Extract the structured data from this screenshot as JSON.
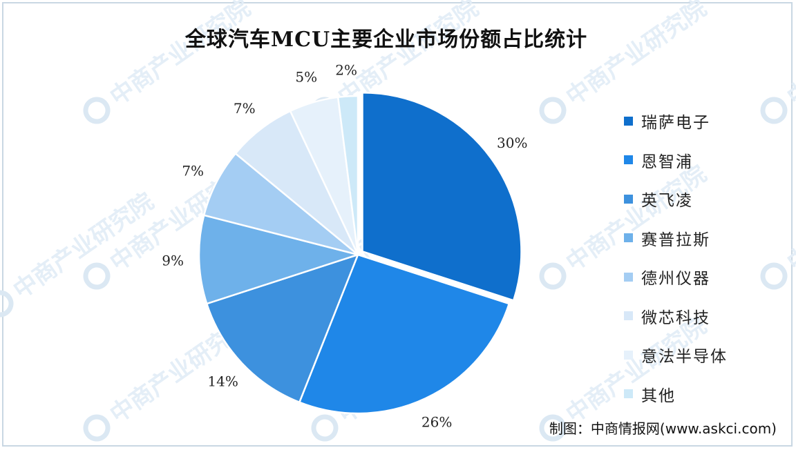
{
  "chart_data": {
    "type": "pie",
    "title": "全球汽车MCU主要企业市场份额占比统计",
    "categories": [
      "瑞萨电子",
      "恩智浦",
      "英飞凌",
      "赛普拉斯",
      "德州仪器",
      "微芯科技",
      "意法半导体",
      "其他"
    ],
    "values": [
      30,
      26,
      14,
      9,
      7,
      7,
      5,
      2
    ],
    "value_labels": [
      "30%",
      "26%",
      "14%",
      "9%",
      "7%",
      "7%",
      "5%",
      "2%"
    ],
    "colors": [
      "#0f6fcc",
      "#1f87e8",
      "#3d91de",
      "#6eb1ea",
      "#a4cdf3",
      "#d8e8f8",
      "#e6f1fb",
      "#cde9f8"
    ],
    "start_angle": "12 o'clock",
    "direction": "clockwise",
    "exploded_slice": "瑞萨电子",
    "legend_position": "right"
  },
  "source": "制图：中商情报网(www.askci.com)",
  "watermark": "中商产业研究院"
}
